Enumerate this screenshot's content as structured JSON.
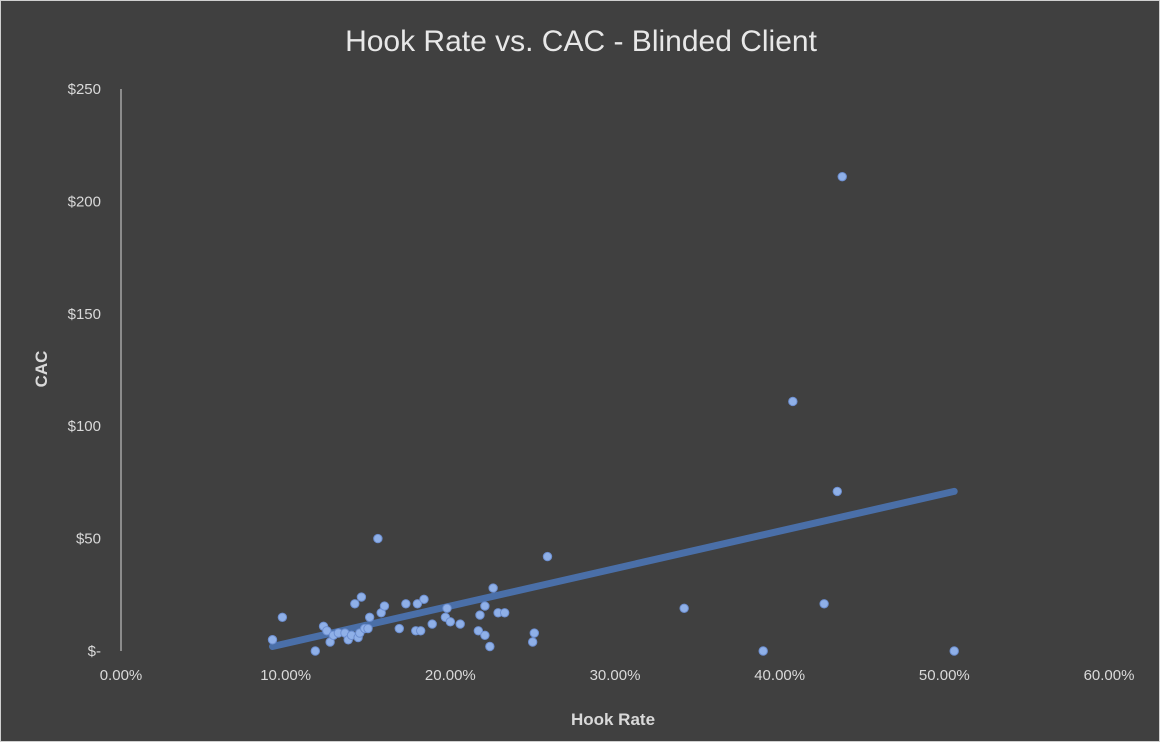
{
  "chart_data": {
    "type": "scatter",
    "title": "Hook Rate vs. CAC - Blinded Client",
    "xlabel": "Hook Rate",
    "ylabel": "CAC",
    "xlim": [
      0,
      0.6
    ],
    "ylim": [
      0,
      250
    ],
    "x_ticks": [
      0,
      0.1,
      0.2,
      0.3,
      0.4,
      0.5,
      0.6
    ],
    "x_tick_labels": [
      "0.00%",
      "10.00%",
      "20.00%",
      "30.00%",
      "40.00%",
      "50.00%",
      "60.00%"
    ],
    "y_ticks": [
      0,
      50,
      100,
      150,
      200,
      250
    ],
    "y_tick_labels": [
      "$-",
      "$50",
      "$100",
      "$150",
      "$200",
      "$250"
    ],
    "grid": false,
    "legend": "none",
    "colors": {
      "background": "#404040",
      "point": "#8fb0e8",
      "trendline": "#4a6fa8",
      "axis_line": "#bfbfbf",
      "text": "#d9d9d9"
    },
    "series": [
      {
        "points": [
          [
            0.092,
            5
          ],
          [
            0.098,
            15
          ],
          [
            0.118,
            0
          ],
          [
            0.123,
            11
          ],
          [
            0.125,
            9
          ],
          [
            0.127,
            4
          ],
          [
            0.129,
            7
          ],
          [
            0.132,
            8
          ],
          [
            0.136,
            8
          ],
          [
            0.138,
            5
          ],
          [
            0.14,
            7
          ],
          [
            0.142,
            21
          ],
          [
            0.144,
            6
          ],
          [
            0.145,
            8
          ],
          [
            0.146,
            24
          ],
          [
            0.148,
            10
          ],
          [
            0.15,
            10
          ],
          [
            0.151,
            15
          ],
          [
            0.156,
            50
          ],
          [
            0.158,
            17
          ],
          [
            0.16,
            20
          ],
          [
            0.169,
            10
          ],
          [
            0.173,
            21
          ],
          [
            0.179,
            9
          ],
          [
            0.18,
            21
          ],
          [
            0.182,
            9
          ],
          [
            0.184,
            23
          ],
          [
            0.189,
            12
          ],
          [
            0.197,
            15
          ],
          [
            0.198,
            19
          ],
          [
            0.2,
            13
          ],
          [
            0.206,
            12
          ],
          [
            0.217,
            9
          ],
          [
            0.218,
            16
          ],
          [
            0.221,
            7
          ],
          [
            0.221,
            20
          ],
          [
            0.224,
            2
          ],
          [
            0.226,
            28
          ],
          [
            0.229,
            17
          ],
          [
            0.233,
            17
          ],
          [
            0.25,
            4
          ],
          [
            0.251,
            8
          ],
          [
            0.259,
            42
          ],
          [
            0.342,
            19
          ],
          [
            0.39,
            0
          ],
          [
            0.408,
            111
          ],
          [
            0.427,
            21
          ],
          [
            0.435,
            71
          ],
          [
            0.438,
            211
          ],
          [
            0.506,
            0
          ]
        ]
      }
    ],
    "trendline": {
      "type": "linear",
      "x": [
        0.092,
        0.506
      ],
      "y": [
        2,
        71
      ]
    }
  }
}
